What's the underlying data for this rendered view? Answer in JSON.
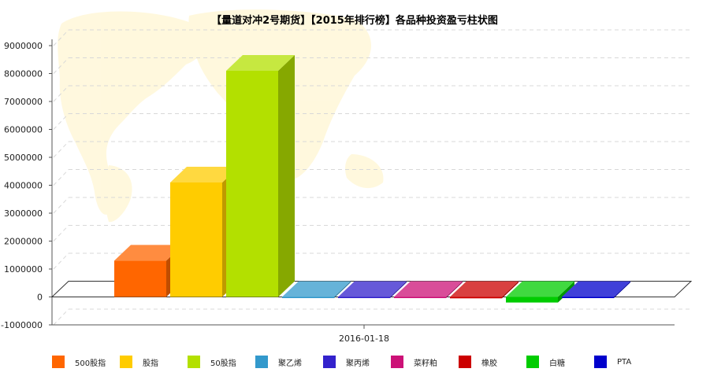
{
  "chart_data": {
    "type": "bar",
    "title": "【量道对冲2号期货】【2015年排行榜】各品种投资盈亏柱状图",
    "categories": [
      "2016-01-18"
    ],
    "ylim": [
      -1000000,
      9000000
    ],
    "yticks": [
      -1000000,
      0,
      1000000,
      2000000,
      3000000,
      4000000,
      5000000,
      6000000,
      7000000,
      8000000,
      9000000
    ],
    "ytick_labels": [
      "-1000000",
      "0",
      "1000000",
      "2000000",
      "3000000",
      "4000000",
      "5000000",
      "6000000",
      "7000000",
      "8000000",
      "9000000"
    ],
    "grid": true,
    "legend_position": "bottom",
    "three_d": true,
    "series": [
      {
        "name": "500股指",
        "values": [
          1300000
        ],
        "color": "#ff6600"
      },
      {
        "name": "股指",
        "values": [
          4100000
        ],
        "color": "#ffcc00"
      },
      {
        "name": "50股指",
        "values": [
          8100000
        ],
        "color": "#b3e000"
      },
      {
        "name": "聚乙烯",
        "values": [
          0
        ],
        "color": "#3399cc"
      },
      {
        "name": "聚丙烯",
        "values": [
          0
        ],
        "color": "#3322cc"
      },
      {
        "name": "菜籽粕",
        "values": [
          0
        ],
        "color": "#cc1177"
      },
      {
        "name": "橡胶",
        "values": [
          -50000
        ],
        "color": "#cc0000"
      },
      {
        "name": "白糖",
        "values": [
          -200000
        ],
        "color": "#00cc00"
      },
      {
        "name": "PTA",
        "values": [
          0
        ],
        "color": "#0000cc"
      }
    ]
  },
  "legend_label_tokens": {
    "note": "legend labels come from chart_data.series[].name"
  }
}
